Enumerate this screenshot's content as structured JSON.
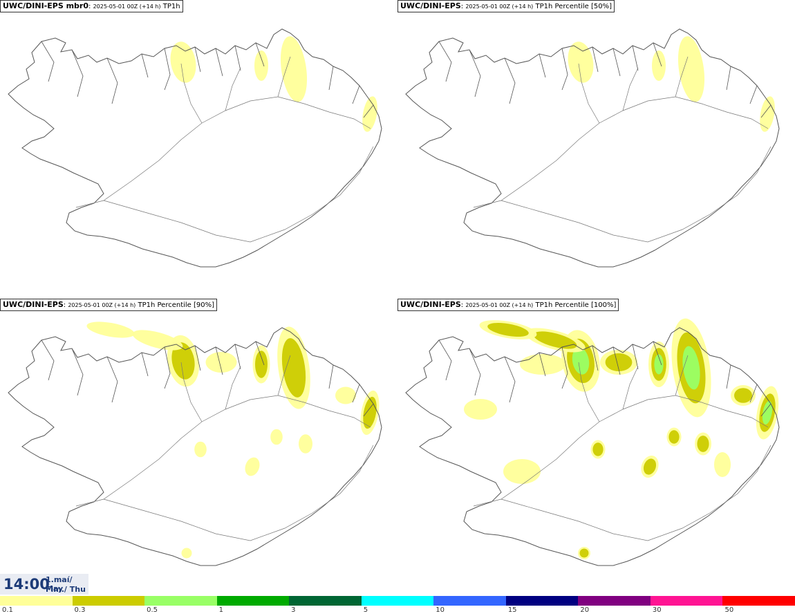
{
  "panels": [
    {
      "model": "UWC/DINI-EPS mbr0",
      "run": "2025-05-01 00Z (+14 h)",
      "field": "TP1h",
      "intensity": 1
    },
    {
      "model": "UWC/DINI-EPS",
      "run": "2025-05-01 00Z (+14 h)",
      "field": "TP1h Percentile [50%]",
      "intensity": 1
    },
    {
      "model": "UWC/DINI-EPS",
      "run": "2025-05-01 00Z (+14 h)",
      "field": "TP1h Percentile [90%]",
      "intensity": 2
    },
    {
      "model": "UWC/DINI-EPS",
      "run": "2025-05-01 00Z (+14 h)",
      "field": "TP1h Percentile [100%]",
      "intensity": 3
    }
  ],
  "time": {
    "clock": "14:00",
    "date_line1": "1.maí/ May",
    "date_line2": "Fim./ Thu"
  },
  "colorbar": {
    "thresholds": [
      "0.1",
      "0.3",
      "0.5",
      "1",
      "3",
      "5",
      "10",
      "15",
      "20",
      "30",
      "50"
    ],
    "colors": [
      "#ffff99",
      "#cccc00",
      "#99ff66",
      "#00aa00",
      "#006633",
      "#00ffff",
      "#3366ff",
      "#000080",
      "#800080",
      "#ff1493",
      "#ff0000"
    ]
  }
}
